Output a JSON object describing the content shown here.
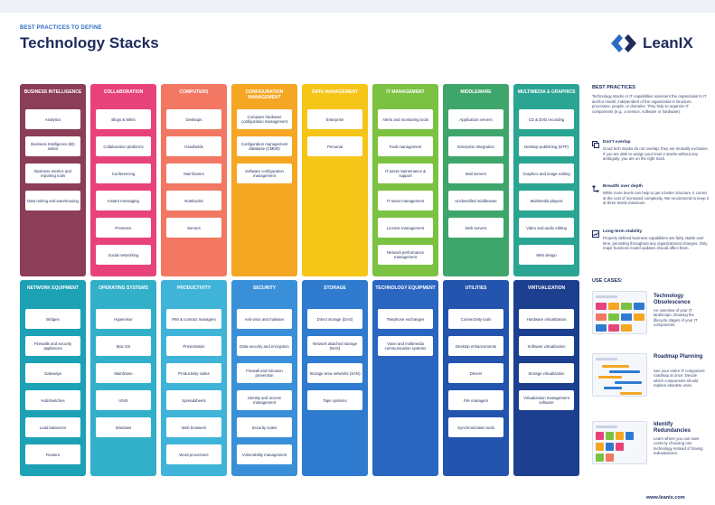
{
  "header": {
    "kicker": "BEST PRACTICES TO DEFINE",
    "title": "Technology Stacks",
    "logo_text": "LeanIX"
  },
  "columns_top": [
    {
      "title": "BUSINESS INTELLIGENCE",
      "color": "#8c3d58",
      "items": [
        "Analytics",
        "Business Intelligence (BI) suites",
        "Business metrics and reporting tools",
        "Data mining and warehousing"
      ]
    },
    {
      "title": "COLLABORATION",
      "color": "#e7437a",
      "items": [
        "Blogs & Wikis",
        "Collaboration platforms",
        "Conferencing",
        "Instant messaging",
        "Presence",
        "Social networking"
      ]
    },
    {
      "title": "COMPUTERS",
      "color": "#f27863",
      "items": [
        "Desktops",
        "Handhelds",
        "Mainframes",
        "Notebooks",
        "Servers"
      ]
    },
    {
      "title": "CONFIGURATION MANAGEMENT",
      "color": "#f5a623",
      "items": [
        "Computer hardware configuration management",
        "Configuration management database (CMDB)",
        "Software configuration management"
      ]
    },
    {
      "title": "DATA MANAGEMENT",
      "color": "#f5c518",
      "items": [
        "Enterprise",
        "Personal"
      ]
    },
    {
      "title": "IT MANAGEMENT",
      "color": "#7cc242",
      "items": [
        "Alerts and monitoring tools",
        "Fault management",
        "IT asset maintenance & support",
        "IT asset management",
        "License management",
        "Network performance management"
      ]
    },
    {
      "title": "MIDDLEWARE",
      "color": "#3fa66b",
      "items": [
        "Application servers",
        "Enterprise integration",
        "Mail servers",
        "Unclassified middleware",
        "Web servers"
      ]
    },
    {
      "title": "MULTIMEDIA & GRAPHICS",
      "color": "#2aa593",
      "items": [
        "CD & DVD recording",
        "Desktop publishing (DTP)",
        "Graphics and image editing",
        "Multimedia players",
        "Video and audio editing",
        "Web design"
      ]
    }
  ],
  "columns_bottom": [
    {
      "title": "NETWORK EQUIPMENT",
      "color": "#1ca1b5",
      "items": [
        "Bridges",
        "Firewalls and security appliances",
        "Gateways",
        "Hub/Switches",
        "Load balancers",
        "Routers"
      ]
    },
    {
      "title": "OPERATING SYSTEMS",
      "color": "#33b0c9",
      "items": [
        "Hypervisor",
        "Mac OS",
        "Mainframe",
        "UNIX",
        "Windows"
      ]
    },
    {
      "title": "PRODUCTIVITY",
      "color": "#3fb4d8",
      "items": [
        "PIM & contract managers",
        "Presentation",
        "Productivity suites",
        "Spreadsheets",
        "Web browsers",
        "Word processors"
      ]
    },
    {
      "title": "SECURITY",
      "color": "#3a90d8",
      "items": [
        "Anti-virus and malware",
        "Data security and encryption",
        "Firewall and intrusion prevention",
        "Identity and access management",
        "Security suites",
        "Vulnerability management"
      ]
    },
    {
      "title": "STORAGE",
      "color": "#2e7bd0",
      "items": [
        "Direct storage (DAS)",
        "Network attached storage (NAS)",
        "Storage area networks (SAN)",
        "Tape systems"
      ]
    },
    {
      "title": "TECHNOLOGY EQUIPMENT",
      "color": "#2a66c0",
      "items": [
        "Telephone exchanges",
        "Voice and multimedia communication systems"
      ]
    },
    {
      "title": "UTILITIES",
      "color": "#2455ae",
      "items": [
        "Connectivity tools",
        "Desktop enhancements",
        "Drivers",
        "File managers",
        "Synchronization tools"
      ]
    },
    {
      "title": "VIRTUALIZATION",
      "color": "#1d3f8f",
      "items": [
        "Hardware virtualization",
        "Software virtualization",
        "Storage virtualization",
        "Virtualization management software"
      ]
    }
  ],
  "sidebar": {
    "best_practices_title": "BEST PRACTICES",
    "intro": "Technology stacks or IT capabilities represent the organization's IT anchor model, independent of the organization's structure, processes, people, or domains. They help to organize IT components (e.g., a service, software or hardware).",
    "practices": [
      {
        "icon": "layers-icon",
        "title": "Don't overlap",
        "text": "Good tech stacks do not overlap, they are mutually exclusive. If you are able to assign your level 2 stacks without any ambiguity, you are on the right track."
      },
      {
        "icon": "hierarchy-icon",
        "title": "Breadth over depth",
        "text": "While more levels can help to get a better structure, it comes at the cost of increased complexity. We recommend to keep it at three levels maximum."
      },
      {
        "icon": "chart-icon",
        "title": "Long-term stability",
        "text": "Properly defined business capabilities are fairly stable over time, persisting throughout any organizational changes. Only major business model updates should affect them."
      }
    ],
    "use_cases_title": "USE CASES:",
    "use_cases": [
      {
        "title": "Technology Obsolescence",
        "text": "An overview of your IT landscape, showing the lifecycle stages of your IT components."
      },
      {
        "title": "Roadmap Planning",
        "text": "See your entire IT component roadmap at once. Decide which components should replace obsolete ones."
      },
      {
        "title": "Identify Redundancies",
        "text": "Learn where you can save costs by choosing one technology instead of having redundancies."
      }
    ]
  },
  "footer": {
    "url": "www.leanix.com"
  }
}
